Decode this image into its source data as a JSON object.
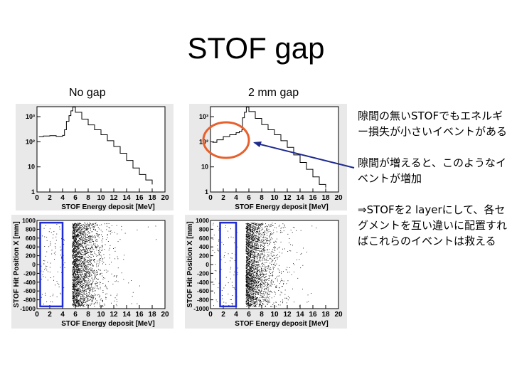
{
  "slide": {
    "title": "STOF gap",
    "labels": {
      "left": "No gap",
      "right": "2 mm gap"
    },
    "notes": [
      "隙間の無いSTOFでもエネルギー損失が小さいイベントがある",
      "隙間が増えると、このようなイベントが増加",
      "⇒STOFを2 layerにして、各セグメントを互い違いに配置すればこれらのイベントは救える"
    ],
    "colors": {
      "circle": "#e8602c",
      "arrow": "#1e2a8c",
      "box": "#1f2bd6"
    }
  },
  "chart_data": [
    {
      "type": "line",
      "panel": "top-left",
      "x_label": "STOF Energy deposit [MeV]",
      "xlim": [
        0,
        20
      ],
      "x_ticks": [
        "0",
        "2",
        "4",
        "6",
        "8",
        "10",
        "12",
        "14",
        "16",
        "18",
        "20"
      ],
      "y_scale": "log",
      "ylim": [
        1,
        2500
      ],
      "y_ticks": [
        "1",
        "10",
        "10²",
        "10³"
      ],
      "series": [
        {
          "x": [
            0.3,
            1,
            2,
            3,
            4,
            4.3,
            4.6,
            5,
            5.3,
            5.6,
            6,
            7,
            8,
            9,
            10,
            11,
            12,
            13,
            14,
            15,
            16,
            17,
            18
          ],
          "y": [
            160,
            170,
            175,
            165,
            180,
            300,
            650,
            1100,
            1700,
            2400,
            1500,
            800,
            470,
            300,
            190,
            110,
            65,
            35,
            18,
            9,
            5,
            3,
            2
          ]
        }
      ]
    },
    {
      "type": "line",
      "panel": "top-right",
      "x_label": "STOF Energy deposit [MeV]",
      "xlim": [
        0,
        20
      ],
      "x_ticks": [
        "0",
        "2",
        "4",
        "6",
        "8",
        "10",
        "12",
        "14",
        "16",
        "18",
        "20"
      ],
      "y_scale": "log",
      "ylim": [
        1,
        2500
      ],
      "y_ticks": [
        "1",
        "10",
        "10²",
        "10³"
      ],
      "series": [
        {
          "x": [
            0.3,
            1,
            2,
            3,
            4,
            4.5,
            4.9,
            5,
            5.3,
            5.6,
            6,
            7,
            8,
            9,
            10,
            11,
            12,
            13,
            14,
            15,
            16,
            17,
            18
          ],
          "y": [
            95,
            120,
            160,
            190,
            230,
            260,
            300,
            900,
            1500,
            2400,
            1600,
            850,
            480,
            300,
            190,
            110,
            60,
            30,
            15,
            8,
            4,
            2,
            1.5
          ]
        }
      ]
    },
    {
      "type": "scatter",
      "panel": "bottom-left",
      "x_label": "STOF Energy deposit [MeV]",
      "y_label": "STOF Hit Position X [mm]",
      "xlim": [
        0,
        20
      ],
      "ylim": [
        -1000,
        1000
      ],
      "x_ticks": [
        "0",
        "2",
        "4",
        "6",
        "8",
        "10",
        "12",
        "14",
        "16",
        "18",
        "20"
      ],
      "y_ticks": [
        "-1000",
        "-800",
        "-600",
        "-400",
        "-200",
        "0",
        "200",
        "400",
        "600",
        "800",
        "1000"
      ],
      "density_peak_x": 6.5,
      "highlight_box": {
        "x": [
          0.5,
          4.0
        ],
        "y": [
          -950,
          950
        ]
      }
    },
    {
      "type": "scatter",
      "panel": "bottom-right",
      "x_label": "STOF Energy deposit [MeV]",
      "y_label": "STOF Hit Position X [mm]",
      "xlim": [
        0,
        20
      ],
      "ylim": [
        -1000,
        1000
      ],
      "x_ticks": [
        "0",
        "2",
        "4",
        "6",
        "8",
        "10",
        "12",
        "14",
        "16",
        "18",
        "20"
      ],
      "y_ticks": [
        "-1000",
        "-800",
        "-600",
        "-400",
        "-200",
        "0",
        "200",
        "400",
        "600",
        "800",
        "1000"
      ],
      "density_peak_x": 6.5,
      "highlight_box": {
        "x": [
          1.5,
          4.0
        ],
        "y": [
          -950,
          950
        ]
      }
    }
  ]
}
